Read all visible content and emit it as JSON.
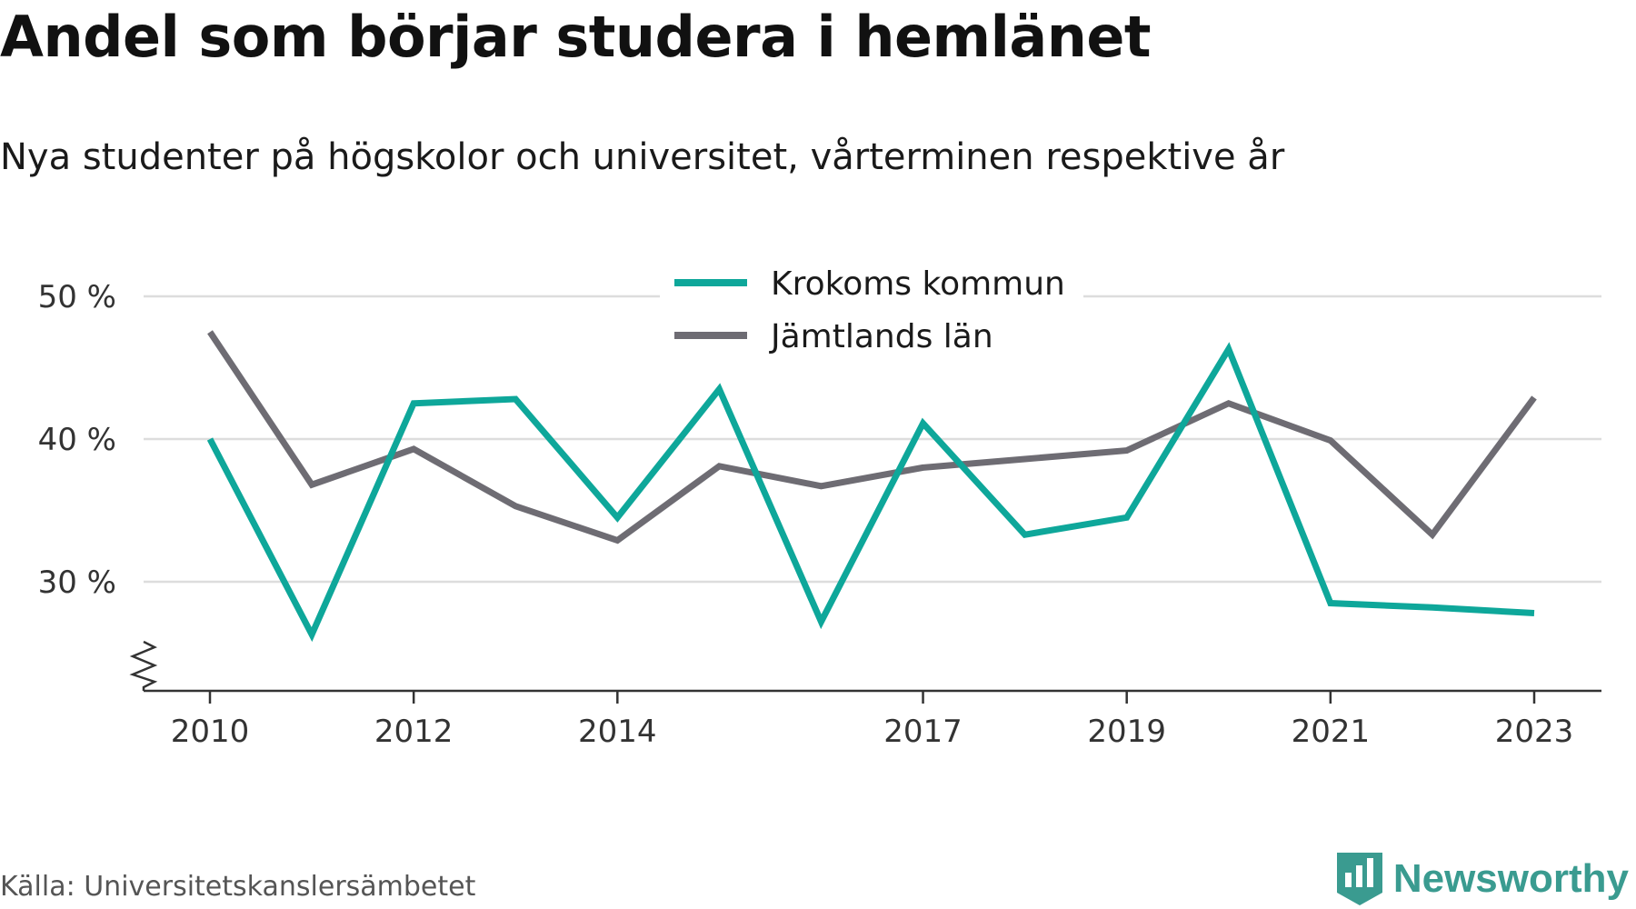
{
  "header": {
    "title": "Andel som börjar studera i hemlänet",
    "subtitle": "Nya studenter på högskolor och universitet, vårterminen respektive år"
  },
  "footer": {
    "source": "Källa: Universitetskanslersämbetet",
    "brand": "Newsworthy",
    "brand_logo_icon": "bar-chart-badge-icon"
  },
  "colors": {
    "krokom": "#0ea79a",
    "jamtland": "#6e6c73",
    "grid": "#dddddd",
    "axis": "#333333",
    "brand": "#3a9b90"
  },
  "chart_data": {
    "type": "line",
    "x": [
      2010,
      2011,
      2012,
      2013,
      2014,
      2015,
      2016,
      2017,
      2018,
      2019,
      2020,
      2021,
      2022,
      2023
    ],
    "x_tick_labels": [
      "2010",
      "2012",
      "2014",
      "2017",
      "2019",
      "2021",
      "2023"
    ],
    "y_ticks": [
      30,
      40,
      50
    ],
    "y_tick_labels": [
      "30 %",
      "40 %",
      "50 %"
    ],
    "ylim": [
      22.5,
      50
    ],
    "y_axis_break": true,
    "grid": true,
    "legend_position": "top-center",
    "series": [
      {
        "name": "Krokoms kommun",
        "color": "#0ea79a",
        "values": [
          40.0,
          26.3,
          42.5,
          42.8,
          34.5,
          43.5,
          27.2,
          41.1,
          33.3,
          34.5,
          46.3,
          28.5,
          28.2,
          27.8
        ]
      },
      {
        "name": "Jämtlands län",
        "color": "#6e6c73",
        "values": [
          47.5,
          36.8,
          39.3,
          35.3,
          32.9,
          38.1,
          36.7,
          38.0,
          38.6,
          39.2,
          42.5,
          39.9,
          33.3,
          42.9
        ]
      }
    ]
  }
}
